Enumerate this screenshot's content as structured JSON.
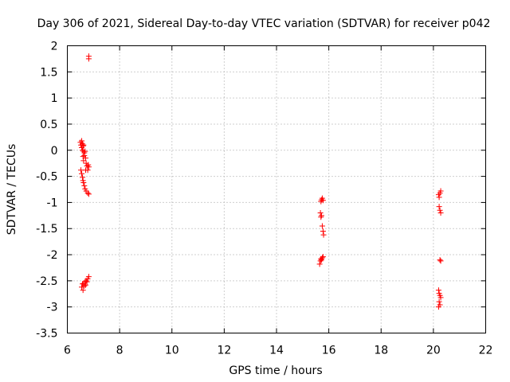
{
  "chart_data": {
    "type": "scatter",
    "title": "Day 306 of 2021, Sidereal Day-to-day VTEC variation (SDTVAR) for receiver p042",
    "xlabel": "GPS time / hours",
    "ylabel": "SDTVAR / TECUs",
    "xlim": [
      6,
      22
    ],
    "ylim": [
      -3.5,
      2
    ],
    "xticks": [
      6,
      8,
      10,
      12,
      14,
      16,
      18,
      20,
      22
    ],
    "yticks": [
      -3.5,
      -3,
      -2.5,
      -2,
      -1.5,
      -1,
      -0.5,
      0,
      0.5,
      1,
      1.5,
      2
    ],
    "grid": true,
    "marker": "plus",
    "color": "#ff0000",
    "series": [
      {
        "name": "SDTVAR",
        "points": [
          [
            6.82,
            1.8
          ],
          [
            6.82,
            1.75
          ],
          [
            6.5,
            0.15
          ],
          [
            6.52,
            0.1
          ],
          [
            6.55,
            0.18
          ],
          [
            6.55,
            0.05
          ],
          [
            6.58,
            0.12
          ],
          [
            6.58,
            0.0
          ],
          [
            6.6,
            0.08
          ],
          [
            6.62,
            -0.02
          ],
          [
            6.62,
            0.1
          ],
          [
            6.65,
            -0.05
          ],
          [
            6.65,
            -0.1
          ],
          [
            6.68,
            -0.02
          ],
          [
            6.6,
            -0.12
          ],
          [
            6.7,
            -0.15
          ],
          [
            6.62,
            -0.2
          ],
          [
            6.72,
            -0.25
          ],
          [
            6.75,
            -0.3
          ],
          [
            6.78,
            -0.38
          ],
          [
            6.8,
            -0.28
          ],
          [
            6.82,
            -0.32
          ],
          [
            6.7,
            -0.38
          ],
          [
            6.52,
            -0.38
          ],
          [
            6.55,
            -0.45
          ],
          [
            6.58,
            -0.52
          ],
          [
            6.6,
            -0.58
          ],
          [
            6.62,
            -0.62
          ],
          [
            6.65,
            -0.68
          ],
          [
            6.68,
            -0.74
          ],
          [
            6.72,
            -0.78
          ],
          [
            6.78,
            -0.82
          ],
          [
            6.82,
            -0.84
          ],
          [
            6.55,
            -2.62
          ],
          [
            6.58,
            -2.56
          ],
          [
            6.6,
            -2.68
          ],
          [
            6.62,
            -2.55
          ],
          [
            6.65,
            -2.6
          ],
          [
            6.68,
            -2.52
          ],
          [
            6.7,
            -2.58
          ],
          [
            6.72,
            -2.5
          ],
          [
            6.75,
            -2.52
          ],
          [
            6.78,
            -2.46
          ],
          [
            6.82,
            -2.42
          ],
          [
            15.7,
            -0.98
          ],
          [
            15.72,
            -0.95
          ],
          [
            15.75,
            -0.92
          ],
          [
            15.78,
            -0.96
          ],
          [
            15.68,
            -1.2
          ],
          [
            15.7,
            -1.28
          ],
          [
            15.72,
            -1.25
          ],
          [
            15.75,
            -1.45
          ],
          [
            15.78,
            -1.55
          ],
          [
            15.8,
            -1.62
          ],
          [
            15.65,
            -2.18
          ],
          [
            15.68,
            -2.12
          ],
          [
            15.7,
            -2.08
          ],
          [
            15.72,
            -2.1
          ],
          [
            15.75,
            -2.06
          ],
          [
            15.78,
            -2.04
          ],
          [
            20.2,
            -0.85
          ],
          [
            20.22,
            -0.9
          ],
          [
            20.25,
            -0.82
          ],
          [
            20.28,
            -0.78
          ],
          [
            20.22,
            -1.08
          ],
          [
            20.25,
            -1.15
          ],
          [
            20.28,
            -1.2
          ],
          [
            20.25,
            -2.1
          ],
          [
            20.28,
            -2.12
          ],
          [
            20.2,
            -2.68
          ],
          [
            20.22,
            -2.74
          ],
          [
            20.25,
            -2.78
          ],
          [
            20.28,
            -2.82
          ],
          [
            20.22,
            -2.9
          ],
          [
            20.25,
            -2.96
          ],
          [
            20.2,
            -3.0
          ]
        ]
      }
    ]
  }
}
